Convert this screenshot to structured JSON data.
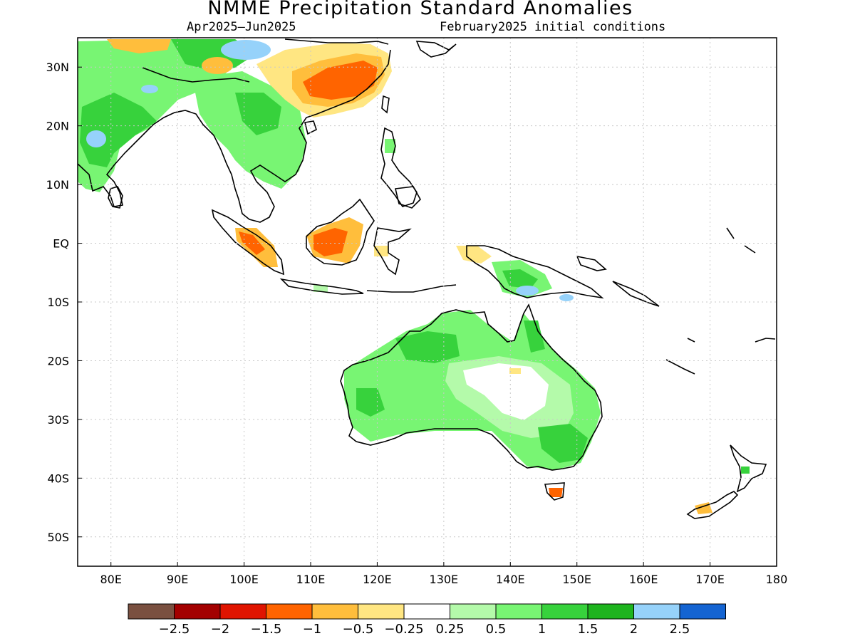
{
  "title": "NMME Precipitation Standard Anomalies",
  "subtitle_left": "Apr2025–Jun2025",
  "subtitle_right": "February2025 initial conditions",
  "map": {
    "lon_range": [
      75,
      180
    ],
    "lat_range": [
      -55,
      35
    ],
    "lon_ticks": [
      "80E",
      "90E",
      "100E",
      "110E",
      "120E",
      "130E",
      "140E",
      "150E",
      "160E",
      "170E",
      "180"
    ],
    "lat_ticks": [
      "30N",
      "20N",
      "10N",
      "EQ",
      "10S",
      "20S",
      "30S",
      "40S",
      "50S"
    ],
    "grid": "dotted"
  },
  "colorbar": {
    "colors": [
      "#7a5040",
      "#a30000",
      "#e01400",
      "#ff6400",
      "#ffbe3c",
      "#ffe682",
      "#ffffff",
      "#b4faaa",
      "#78f573",
      "#37d23c",
      "#1eb41e",
      "#96d2fa",
      "#1464d2"
    ],
    "labels": [
      "−2.5",
      "−2",
      "−1.5",
      "−1",
      "−0.5",
      "−0.25",
      "0.25",
      "0.5",
      "1",
      "1.5",
      "2",
      "2.5"
    ]
  },
  "chart_data": {
    "type": "heatmap",
    "title": "NMME Precipitation Standard Anomalies",
    "subtitle": "Apr2025–Jun2025, February2025 initial conditions",
    "xlim": [
      75,
      180
    ],
    "ylim": [
      -55,
      35
    ],
    "regions": [
      {
        "region": "India / Bay of Bengal",
        "anomaly_range": [
          0.5,
          2.5
        ]
      },
      {
        "region": "Southeast Asia (Myanmar, Thailand, Indochina)",
        "anomaly_range": [
          0.5,
          1.5
        ]
      },
      {
        "region": "Southern China",
        "anomaly_range": [
          -1.5,
          -0.25
        ]
      },
      {
        "region": "Borneo",
        "anomaly_range": [
          -1.5,
          -0.25
        ]
      },
      {
        "region": "Southern Sumatra",
        "anomaly_range": [
          -1.5,
          -0.25
        ]
      },
      {
        "region": "Papua New Guinea",
        "anomaly_range": [
          0.5,
          2.5
        ]
      },
      {
        "region": "Western and northern Australia",
        "anomaly_range": [
          0.5,
          1.5
        ]
      },
      {
        "region": "Central Australia",
        "anomaly_range": [
          -0.25,
          0.25
        ]
      },
      {
        "region": "Southeastern Australia",
        "anomaly_range": [
          0.5,
          1.5
        ]
      },
      {
        "region": "Tasmania",
        "anomaly_range": [
          -1.5,
          -0.5
        ]
      },
      {
        "region": "New Zealand South Island",
        "anomaly_range": [
          -1,
          -0.25
        ]
      }
    ]
  }
}
